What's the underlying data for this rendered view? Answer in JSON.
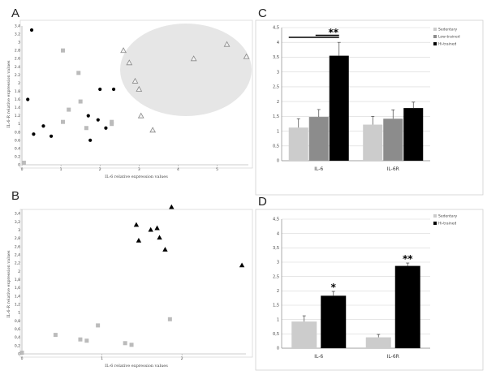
{
  "panels": [
    "A",
    "B",
    "C",
    "D"
  ],
  "chart_data": [
    {
      "id": "A",
      "type": "scatter",
      "xlabel": "IL-6 relative expression values",
      "ylabel": "IL-6-R relative expression values",
      "xticks": [
        "0",
        "1",
        "2",
        "3",
        "4",
        "5"
      ],
      "yticks": [
        "0",
        "0.2",
        "0.4",
        "0.6",
        "0.8",
        "1",
        "1.2",
        "1.4",
        "1.6",
        "1.8",
        "2",
        "2.2",
        "2.4",
        "2.6",
        "2.8",
        "3",
        "3.2",
        "3.4"
      ],
      "xlim": [
        0,
        5.8
      ],
      "ylim": [
        0,
        3.4
      ],
      "highlight": "grey ellipse around the triangle group",
      "series": [
        {
          "marker": "circle",
          "color": "#000000",
          "x": [
            0.25,
            0.15,
            0.3,
            0.55,
            0.75,
            1.75,
            1.95,
            2.0,
            2.35,
            2.15,
            1.7
          ],
          "y": [
            3.3,
            1.6,
            0.75,
            0.95,
            0.7,
            0.6,
            1.1,
            1.85,
            1.85,
            0.9,
            1.2
          ]
        },
        {
          "marker": "square",
          "color": "#bbbbbb",
          "x": [
            0.05,
            1.05,
            1.45,
            1.5,
            1.2,
            1.05,
            1.65,
            2.3,
            2.3
          ],
          "y": [
            0.05,
            2.8,
            2.25,
            1.55,
            1.35,
            1.05,
            0.9,
            1.05,
            1.0
          ]
        },
        {
          "marker": "triangle",
          "color": "#888888",
          "x": [
            2.6,
            2.75,
            2.9,
            3.0,
            3.05,
            3.35,
            4.4,
            5.25,
            5.75
          ],
          "y": [
            2.8,
            2.5,
            2.05,
            1.85,
            1.2,
            0.85,
            2.6,
            2.95,
            2.65
          ]
        }
      ]
    },
    {
      "id": "B",
      "type": "scatter",
      "xlabel": "IL-6 relative expression values",
      "ylabel": "IL-6-R relative expression values",
      "xticks": [
        "0",
        "1",
        "2"
      ],
      "yticks": [
        "0",
        "0,2",
        "0,4",
        "0,6",
        "0,8",
        "1",
        "1,2",
        "1,4",
        "1,6",
        "1,8",
        "2",
        "2,2",
        "2,4",
        "2,6",
        "2,8",
        "3",
        "3,2",
        "3,4"
      ],
      "xlim": [
        0,
        2.8
      ],
      "ylim": [
        0,
        3.5
      ],
      "series": [
        {
          "marker": "square",
          "color": "#bbbbbb",
          "x": [
            0.0,
            0.42,
            0.73,
            0.81,
            0.95,
            1.29,
            1.37,
            1.85
          ],
          "y": [
            0.03,
            0.46,
            0.35,
            0.32,
            0.69,
            0.26,
            0.22,
            0.84
          ]
        },
        {
          "marker": "triangle",
          "color": "#000000",
          "x": [
            1.43,
            1.46,
            1.61,
            1.69,
            1.72,
            1.79,
            1.87,
            2.75
          ],
          "y": [
            3.13,
            2.75,
            3.01,
            3.05,
            2.82,
            2.53,
            3.56,
            2.15
          ]
        }
      ]
    },
    {
      "id": "C",
      "type": "bar",
      "categories": [
        "IL-6",
        "IL-6R"
      ],
      "ylim": [
        0,
        4.5
      ],
      "yticks": [
        "0",
        "0,5",
        "1",
        "1,5",
        "2",
        "2,5",
        "3",
        "3,5",
        "4",
        "4,5"
      ],
      "series": [
        {
          "name": "Sedentary",
          "color": "#cccccc",
          "values": [
            1.12,
            1.22
          ],
          "errors": [
            0.3,
            0.28
          ]
        },
        {
          "name": "Low-trained",
          "color": "#8c8c8c",
          "values": [
            1.48,
            1.42
          ],
          "errors": [
            0.25,
            0.3
          ]
        },
        {
          "name": "Hi-trained",
          "color": "#000000",
          "values": [
            3.55,
            1.78
          ],
          "errors": [
            0.45,
            0.2
          ]
        }
      ],
      "annotations": [
        {
          "text": "**",
          "category": "IL-6"
        }
      ]
    },
    {
      "id": "D",
      "type": "bar",
      "categories": [
        "IL-6",
        "IL-6R"
      ],
      "ylim": [
        0,
        4.5
      ],
      "yticks": [
        "0",
        "0,5",
        "1",
        "1,5",
        "2",
        "2,5",
        "3",
        "3,5",
        "4",
        "4,5"
      ],
      "series": [
        {
          "name": "Sedentary",
          "color": "#cccccc",
          "values": [
            0.93,
            0.38
          ],
          "errors": [
            0.2,
            0.1
          ]
        },
        {
          "name": "Hi-trained",
          "color": "#000000",
          "values": [
            1.83,
            2.87
          ],
          "errors": [
            0.15,
            0.1
          ]
        }
      ],
      "annotations": [
        {
          "text": "*",
          "category": "IL-6"
        },
        {
          "text": "**",
          "category": "IL-6R"
        }
      ]
    }
  ]
}
